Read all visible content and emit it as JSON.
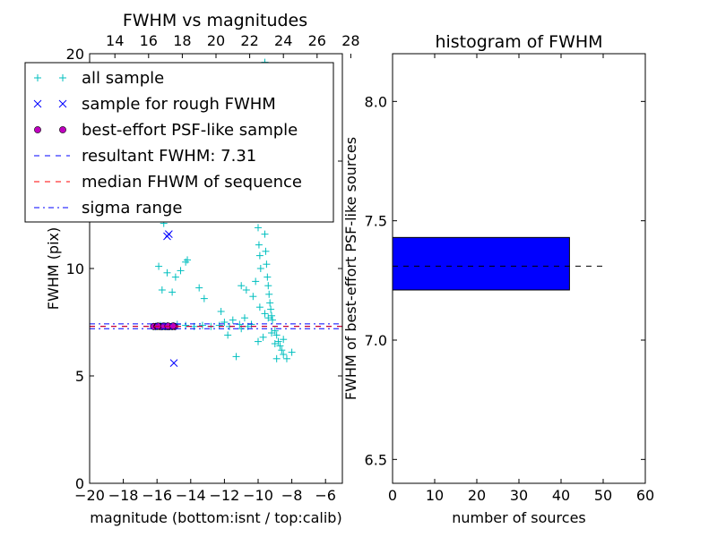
{
  "chart_data": [
    {
      "type": "scatter",
      "title": "FWHM vs magnitudes",
      "xlabel": "magnitude (bottom:isnt / top:calib)",
      "ylabel": "FWHM (pix)",
      "xlim": [
        -20,
        -5
      ],
      "ylim": [
        0,
        20
      ],
      "xticks": [
        "−20",
        "−18",
        "−16",
        "−14",
        "−12",
        "−10",
        "−8",
        "−6"
      ],
      "xtick_values": [
        -20,
        -18,
        -16,
        -14,
        -12,
        -10,
        -8,
        -6
      ],
      "yticks": [
        "0",
        "5",
        "10",
        "15",
        "20"
      ],
      "ytick_values": [
        0,
        5,
        10,
        15,
        20
      ],
      "top_axis": {
        "ticks": [
          "14",
          "16",
          "18",
          "20",
          "22",
          "24",
          "26",
          "28"
        ],
        "values": [
          14,
          16,
          18,
          20,
          22,
          24,
          26,
          28
        ],
        "offset": 32.5
      },
      "legend": {
        "placement": "top-left",
        "entries": [
          {
            "label": "all sample",
            "marker": "+",
            "color": "#00bfbf"
          },
          {
            "label": "sample for rough FWHM",
            "marker": "x",
            "color": "#0000ff"
          },
          {
            "label": "best-effort PSF-like sample",
            "marker": "o",
            "color": "#bf00bf"
          },
          {
            "label": "resultant FWHM: 7.31",
            "marker": "dashed",
            "color": "#0000ff"
          },
          {
            "label": "median FHWM of sequence",
            "marker": "dashed",
            "color": "#ff0000"
          },
          {
            "label": "sigma range",
            "marker": "dashdot",
            "color": "#0000ff"
          }
        ]
      },
      "series": [
        {
          "name": "all sample",
          "marker": "+",
          "color": "#00bfbf",
          "points": [
            [
              -15.8,
              12.4
            ],
            [
              -15.2,
              12.6
            ],
            [
              -15.6,
              12.1
            ],
            [
              -15.9,
              10.1
            ],
            [
              -15.4,
              9.8
            ],
            [
              -15.7,
              9.0
            ],
            [
              -15.1,
              8.9
            ],
            [
              -14.9,
              9.6
            ],
            [
              -14.6,
              9.9
            ],
            [
              -14.3,
              10.3
            ],
            [
              -14.2,
              10.4
            ],
            [
              -13.5,
              9.1
            ],
            [
              -13.2,
              8.6
            ],
            [
              -12.2,
              8.0
            ],
            [
              -11.8,
              6.9
            ],
            [
              -11.3,
              5.9
            ],
            [
              -11.0,
              9.2
            ],
            [
              -10.7,
              9.0
            ],
            [
              -10.3,
              8.7
            ],
            [
              -10.0,
              6.6
            ],
            [
              -10.3,
              13.7
            ],
            [
              -10.2,
              13.1
            ],
            [
              -10.1,
              12.4
            ],
            [
              -10.0,
              11.9
            ],
            [
              -9.95,
              11.1
            ],
            [
              -9.9,
              10.6
            ],
            [
              -9.85,
              10.0
            ],
            [
              -9.8,
              14.1
            ],
            [
              -9.7,
              12.7
            ],
            [
              -9.6,
              11.6
            ],
            [
              -9.55,
              10.8
            ],
            [
              -9.5,
              10.2
            ],
            [
              -9.45,
              9.6
            ],
            [
              -9.4,
              9.2
            ],
            [
              -9.35,
              8.8
            ],
            [
              -9.3,
              8.4
            ],
            [
              -9.25,
              8.1
            ],
            [
              -9.2,
              7.8
            ],
            [
              -9.15,
              7.6
            ],
            [
              -9.0,
              7.1
            ],
            [
              -8.9,
              6.9
            ],
            [
              -8.8,
              6.6
            ],
            [
              -8.7,
              6.4
            ],
            [
              -8.6,
              6.2
            ],
            [
              -8.5,
              6.0
            ],
            [
              -8.3,
              5.8
            ],
            [
              -8.0,
              6.1
            ],
            [
              -8.5,
              6.7
            ],
            [
              -8.9,
              5.8
            ],
            [
              -9.6,
              19.6
            ],
            [
              -9.5,
              19.1
            ],
            [
              -9.8,
              14.9
            ],
            [
              -9.7,
              14.4
            ],
            [
              -10.15,
              9.4
            ],
            [
              -9.9,
              8.2
            ],
            [
              -9.6,
              7.9
            ],
            [
              -9.4,
              7.7
            ],
            [
              -9.7,
              6.8
            ],
            [
              -9.2,
              7.0
            ],
            [
              -9.0,
              6.5
            ],
            [
              -10.4,
              7.4
            ],
            [
              -10.6,
              7.3
            ],
            [
              -11.1,
              7.4
            ],
            [
              -11.7,
              7.3
            ],
            [
              -12.3,
              7.35
            ],
            [
              -12.8,
              7.3
            ],
            [
              -13.3,
              7.35
            ],
            [
              -13.8,
              7.3
            ],
            [
              -14.3,
              7.35
            ],
            [
              -14.8,
              7.4
            ],
            [
              -15.3,
              7.3
            ],
            [
              -15.8,
              7.35
            ],
            [
              -16.2,
              7.3
            ],
            [
              -12.0,
              7.5
            ],
            [
              -11.5,
              7.6
            ],
            [
              -11.0,
              7.2
            ],
            [
              -10.8,
              7.7
            ]
          ]
        },
        {
          "name": "sample for rough FWHM",
          "marker": "x",
          "color": "#0000ff",
          "points": [
            [
              -15.4,
              11.5
            ],
            [
              -15.3,
              11.6
            ],
            [
              -15.0,
              5.6
            ],
            [
              -15.6,
              7.3
            ],
            [
              -15.5,
              7.3
            ],
            [
              -15.3,
              7.3
            ],
            [
              -15.1,
              7.3
            ],
            [
              -15.9,
              7.3
            ],
            [
              -15.2,
              7.32
            ]
          ]
        },
        {
          "name": "best-effort PSF-like sample",
          "marker": "o",
          "color": "#bf00bf",
          "points": [
            [
              -16.2,
              7.3
            ],
            [
              -16.0,
              7.3
            ],
            [
              -15.85,
              7.3
            ],
            [
              -15.7,
              7.3
            ],
            [
              -15.55,
              7.3
            ],
            [
              -15.4,
              7.3
            ],
            [
              -15.25,
              7.3
            ],
            [
              -15.1,
              7.3
            ],
            [
              -14.95,
              7.3
            ],
            [
              -15.95,
              7.32
            ],
            [
              -15.6,
              7.32
            ],
            [
              -15.35,
              7.32
            ],
            [
              -15.05,
              7.32
            ]
          ]
        }
      ],
      "hlines": [
        {
          "name": "resultant FWHM",
          "y": 7.31,
          "color": "#0000ff",
          "style": "dashed"
        },
        {
          "name": "median FHWM of sequence",
          "y": 7.3,
          "color": "#ff0000",
          "style": "dashed"
        },
        {
          "name": "sigma upper",
          "y": 7.42,
          "color": "#0000ff",
          "style": "dashdot"
        },
        {
          "name": "sigma lower",
          "y": 7.2,
          "color": "#0000ff",
          "style": "dashdot"
        }
      ]
    },
    {
      "type": "bar",
      "orientation": "horizontal",
      "title": "histogram of FWHM",
      "xlabel": "number of sources",
      "ylabel": "FWHM of best-effort PSF-like sources",
      "xlim": [
        0,
        60
      ],
      "ylim": [
        6.4,
        8.2
      ],
      "xticks": [
        "0",
        "10",
        "20",
        "30",
        "40",
        "50",
        "60"
      ],
      "xtick_values": [
        0,
        10,
        20,
        30,
        40,
        50,
        60
      ],
      "yticks": [
        "6.5",
        "7.0",
        "7.5",
        "8.0"
      ],
      "ytick_values": [
        6.5,
        7.0,
        7.5,
        8.0
      ],
      "bars": [
        {
          "y_low": 7.21,
          "y_high": 7.43,
          "value": 42,
          "color": "#0000ff"
        }
      ],
      "marker_line": {
        "y": 7.31,
        "x_end": 51,
        "style": "dashed",
        "color": "#000000"
      }
    }
  ]
}
